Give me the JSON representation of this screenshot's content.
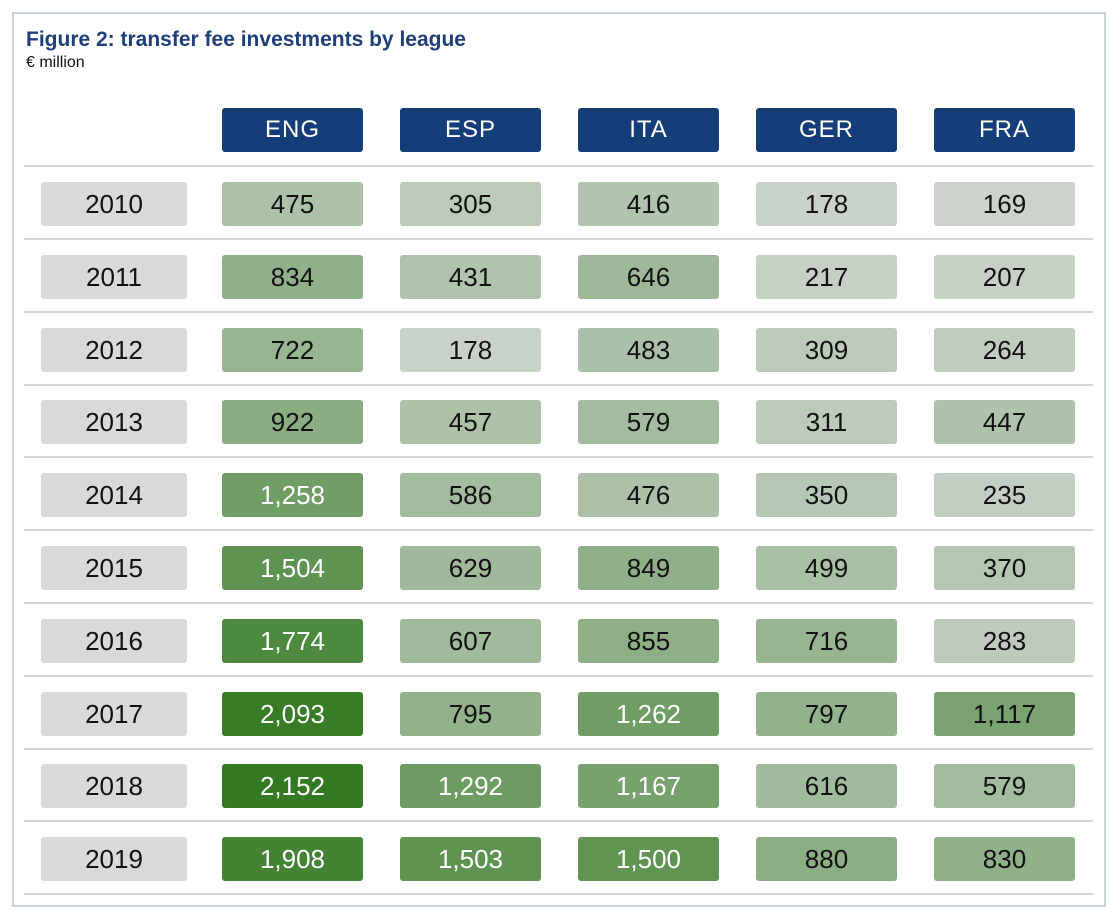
{
  "chart_data": {
    "type": "table",
    "title": "Figure 2: transfer fee investments by league",
    "subtitle": "€ million",
    "columns": [
      "ENG",
      "ESP",
      "ITA",
      "GER",
      "FRA"
    ],
    "rows": [
      {
        "year": "2010",
        "values": [
          475,
          305,
          416,
          178,
          169
        ]
      },
      {
        "year": "2011",
        "values": [
          834,
          431,
          646,
          217,
          207
        ]
      },
      {
        "year": "2012",
        "values": [
          722,
          178,
          483,
          309,
          264
        ]
      },
      {
        "year": "2013",
        "values": [
          922,
          457,
          579,
          311,
          447
        ]
      },
      {
        "year": "2014",
        "values": [
          1258,
          586,
          476,
          350,
          235
        ]
      },
      {
        "year": "2015",
        "values": [
          1504,
          629,
          849,
          499,
          370
        ]
      },
      {
        "year": "2016",
        "values": [
          1774,
          607,
          855,
          716,
          283
        ]
      },
      {
        "year": "2017",
        "values": [
          2093,
          795,
          1262,
          797,
          1117
        ]
      },
      {
        "year": "2018",
        "values": [
          2152,
          1292,
          1167,
          616,
          579
        ]
      },
      {
        "year": "2019",
        "values": [
          1908,
          1503,
          1500,
          880,
          830
        ]
      }
    ],
    "colors": {
      "header_bg": "#153d7a",
      "header_text": "#ffffff",
      "title": "#1f3f7a",
      "year_cell_bg": "#d9d9d9",
      "scale_low": "#cbd3cb",
      "scale_high": "#347a22",
      "dark_text": "#111111",
      "light_text": "#ffffff"
    }
  }
}
